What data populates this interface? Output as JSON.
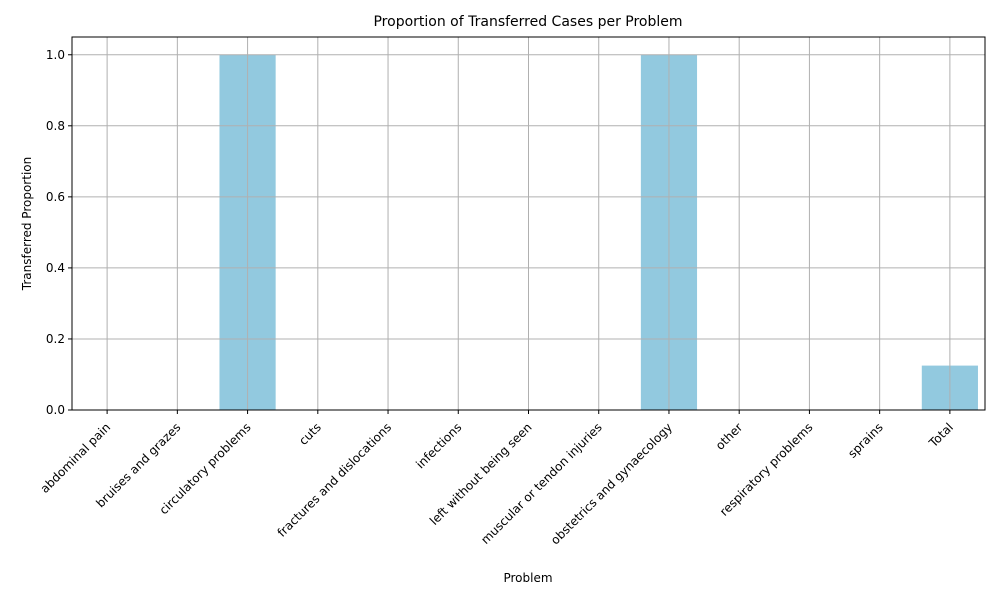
{
  "chart_data": {
    "type": "bar",
    "title": "Proportion of Transferred Cases per Problem",
    "xlabel": "Problem",
    "ylabel": "Transferred Proportion",
    "categories": [
      "abdominal pain",
      "bruises and grazes",
      "circulatory problems",
      "cuts",
      "fractures and dislocations",
      "infections",
      "left without being seen",
      "muscular or tendon injuries",
      "obstetrics and gynaecology",
      "other",
      "respiratory problems",
      "sprains",
      "Total"
    ],
    "values": [
      0,
      0,
      1.0,
      0,
      0,
      0,
      0,
      0,
      1.0,
      0,
      0,
      0,
      0.125
    ],
    "ylim": [
      0,
      1.05
    ],
    "yticks": [
      0.0,
      0.2,
      0.4,
      0.6,
      0.8,
      1.0
    ],
    "ytick_labels": [
      "0.0",
      "0.2",
      "0.4",
      "0.6",
      "0.8",
      "1.0"
    ],
    "grid": true,
    "legend": "none",
    "bar_color": "#92c9df",
    "grid_color": "#b0b0b0"
  }
}
